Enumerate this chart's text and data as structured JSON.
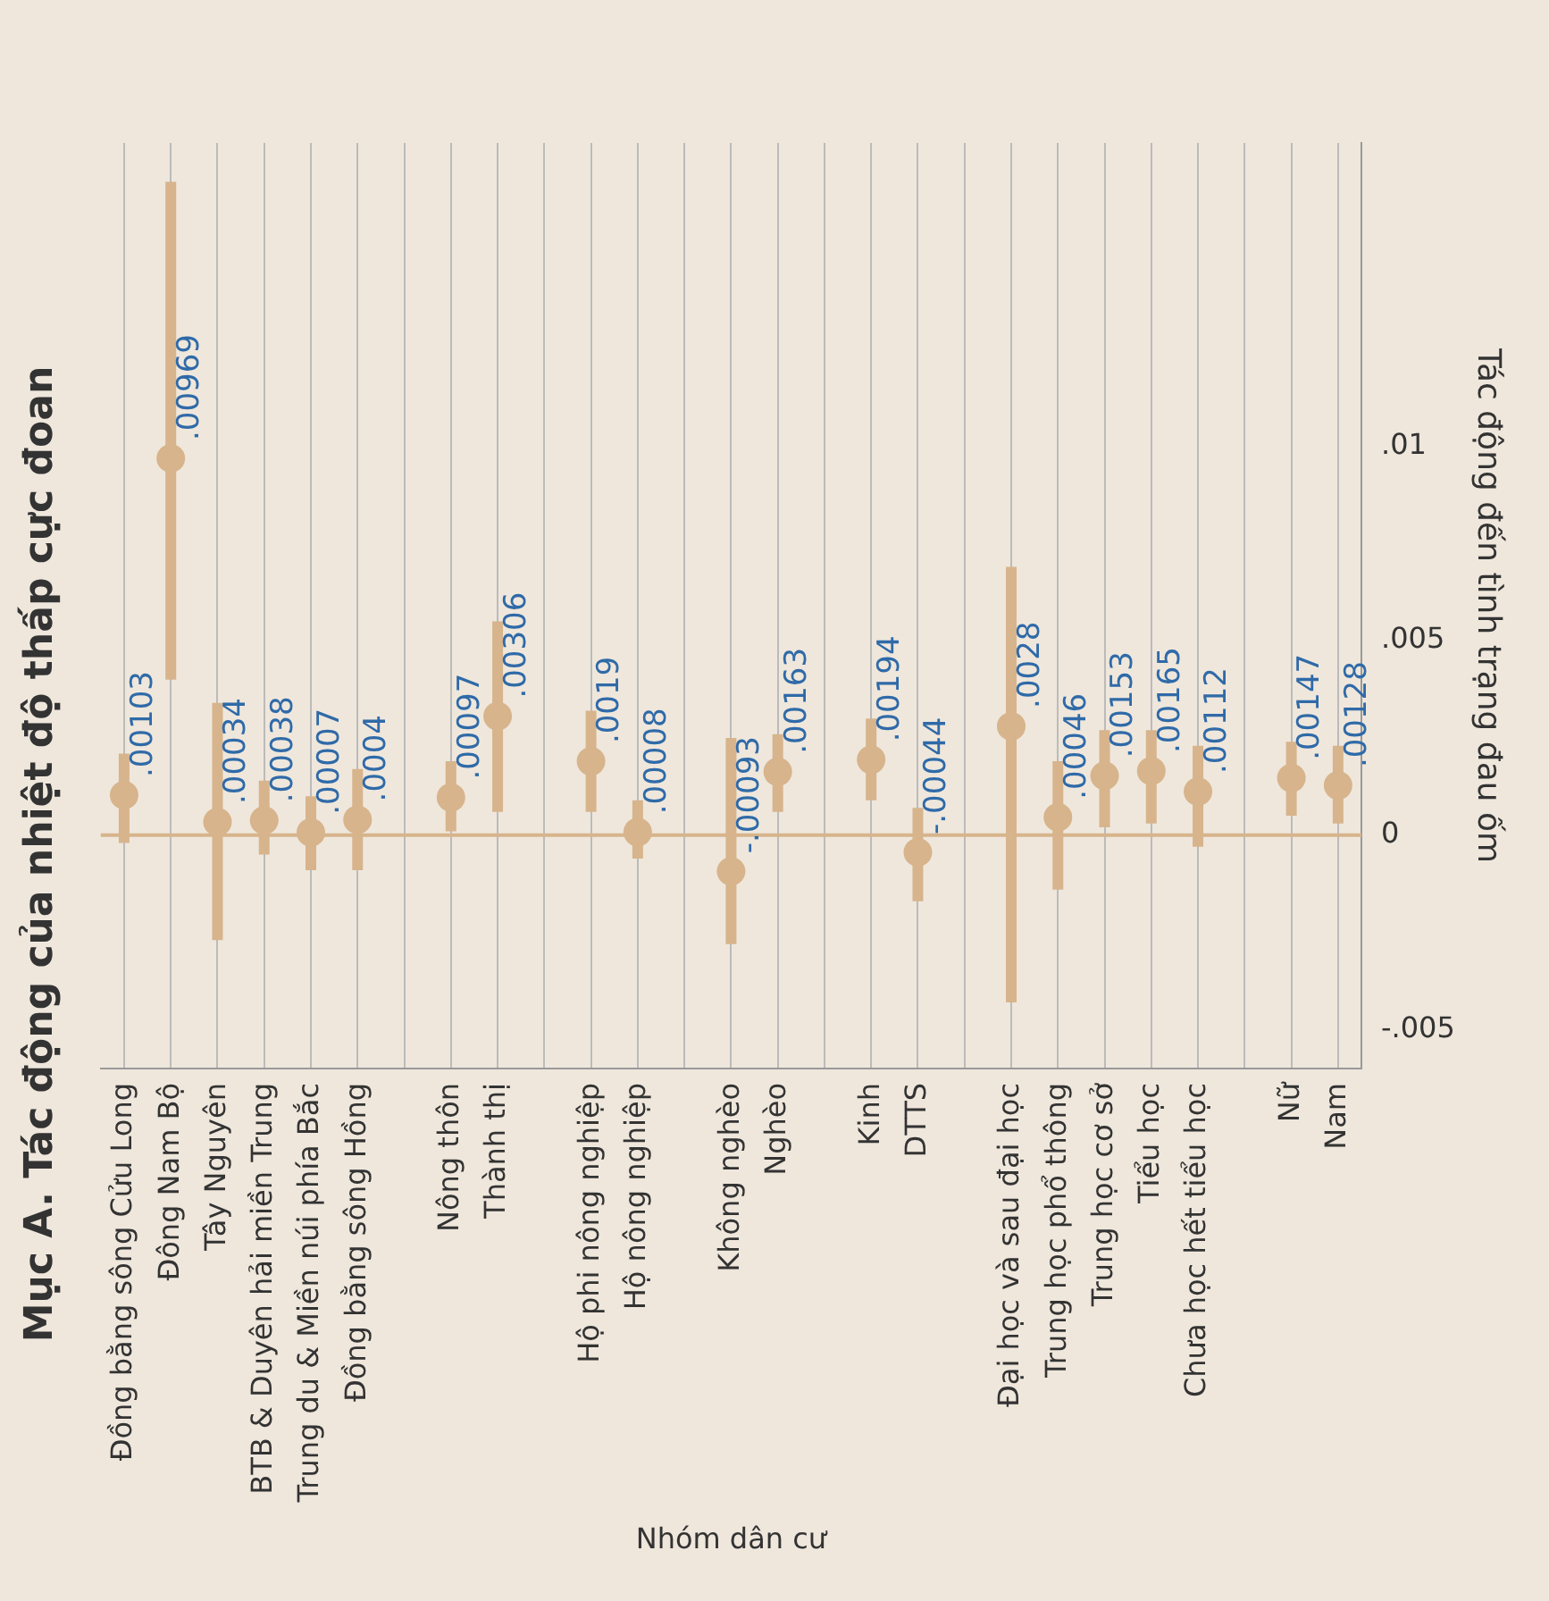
{
  "chart_data": {
    "type": "scatter",
    "title": "Mục A. Tác động của nhiệt độ thấp cực đoan",
    "xlabel": "Nhóm dân cư",
    "ylabel": "Tác động đến tình trạng đau ốm",
    "categories": [
      "Đồng bằng sông Cửu Long",
      "Đông Nam Bộ",
      "Tây Nguyên",
      "BTB & Duyên hải miền Trung",
      "Trung du & Miền núi phía Bắc",
      "Đồng bằng sông Hồng",
      null,
      "Nông thôn",
      "Thành thị",
      null,
      "Hộ phi nông nghiệp",
      "Hộ nông nghiệp",
      null,
      "Không nghèo",
      "Nghèo",
      null,
      "Kinh",
      "DTTS",
      null,
      "Đại học và sau đại học",
      "Trung học phổ thông",
      "Trung học cơ sở",
      "Tiểu học",
      "Chưa học hết tiểu học",
      null,
      "Nữ",
      "Nam"
    ],
    "values": [
      0.00103,
      0.00969,
      0.00034,
      0.00038,
      7e-05,
      0.0004,
      null,
      0.00097,
      0.00306,
      null,
      0.0019,
      8e-05,
      null,
      -0.00093,
      0.00163,
      null,
      0.00194,
      -0.00044,
      null,
      0.0028,
      0.00046,
      0.00153,
      0.00165,
      0.00112,
      null,
      0.00147,
      0.00128
    ],
    "value_labels": [
      ".00103",
      ".00969",
      ".00034",
      ".00038",
      ".00007",
      ".0004",
      null,
      ".00097",
      ".00306",
      null,
      ".0019",
      ".00008",
      null,
      "-.00093",
      ".00163",
      null,
      ".00194",
      "-.00044",
      null,
      ".0028",
      ".00046",
      ".00153",
      ".00165",
      ".00112",
      null,
      ".00147",
      ".00128"
    ],
    "errors": [
      [
        -0.0002,
        0.0021
      ],
      [
        0.004,
        0.0168
      ],
      [
        -0.0027,
        0.0034
      ],
      [
        -0.0005,
        0.0014
      ],
      [
        -0.0009,
        0.001
      ],
      [
        -0.0009,
        0.0017
      ],
      null,
      [
        0.0001,
        0.0019
      ],
      [
        0.0006,
        0.0055
      ],
      null,
      [
        0.0006,
        0.0032
      ],
      [
        -0.0006,
        0.0009
      ],
      null,
      [
        -0.0028,
        0.0025
      ],
      [
        0.0006,
        0.0026
      ],
      null,
      [
        0.0009,
        0.003
      ],
      [
        -0.0017,
        0.0007
      ],
      null,
      [
        -0.0043,
        0.0069
      ],
      [
        -0.0014,
        0.0019
      ],
      [
        0.0002,
        0.0027
      ],
      [
        0.0003,
        0.0027
      ],
      [
        -0.0003,
        0.0023
      ],
      null,
      [
        0.0005,
        0.0024
      ],
      [
        0.0003,
        0.0023
      ]
    ],
    "color": "#d7b48c",
    "marker": "circle",
    "ylim": [
      -0.006,
      0.0178
    ],
    "yticks": [
      {
        "value": -0.005,
        "label": "-.005"
      },
      0,
      {
        "value": 0.005,
        "label": ".005"
      },
      {
        "value": 0.01,
        "label": ".01"
      }
    ],
    "ref_lines": [
      {
        "axis": "y",
        "value": 0,
        "label": null,
        "color": "#d7b48c"
      }
    ],
    "grid": "x",
    "legend": false
  }
}
